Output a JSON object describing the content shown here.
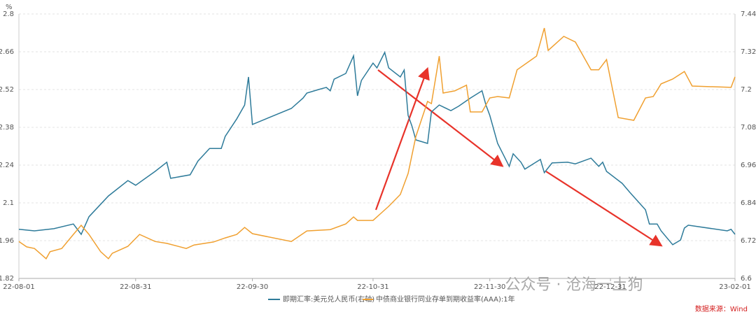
{
  "chart_data": {
    "type": "line",
    "y_unit": "%",
    "xlim": [
      "22-08-01",
      "23-02-01"
    ],
    "xticks": [
      "22-08-01",
      "22-08-31",
      "22-09-30",
      "22-10-31",
      "22-11-30",
      "22-12-31",
      "23-02-01"
    ],
    "ylim": [
      1.82,
      2.8
    ],
    "yticks": [
      1.82,
      1.96,
      2.1,
      2.24,
      2.38,
      2.52,
      2.66,
      2.8
    ],
    "y2lim": [
      6.6,
      7.44
    ],
    "y2ticks": [
      6.6,
      6.72,
      6.84,
      6.96,
      7.08,
      7.2,
      7.32,
      7.44
    ],
    "grid": true,
    "series": [
      {
        "name": "即期汇率:美元兑人民币(右轴)",
        "color": "#2e7b9a",
        "axis": "y2",
        "x": [
          "22-08-01",
          "22-08-05",
          "22-08-10",
          "22-08-15",
          "22-08-17",
          "22-08-19",
          "22-08-24",
          "22-08-29",
          "22-08-31",
          "22-09-05",
          "22-09-08",
          "22-09-09",
          "22-09-14",
          "22-09-16",
          "22-09-19",
          "22-09-22",
          "22-09-23",
          "22-09-26",
          "22-09-28",
          "22-09-29",
          "22-09-30",
          "22-10-10",
          "22-10-13",
          "22-10-14",
          "22-10-17",
          "22-10-19",
          "22-10-20",
          "22-10-21",
          "22-10-24",
          "22-10-26",
          "22-10-27",
          "22-10-28",
          "22-10-31",
          "22-11-01",
          "22-11-03",
          "22-11-04",
          "22-11-07",
          "22-11-08",
          "22-11-09",
          "22-11-10",
          "22-11-11",
          "22-11-14",
          "22-11-15",
          "22-11-17",
          "22-11-20",
          "22-11-22",
          "22-11-25",
          "22-11-28",
          "22-11-29",
          "22-11-30",
          "22-12-02",
          "22-12-05",
          "22-12-06",
          "22-12-08",
          "22-12-09",
          "22-12-13",
          "22-12-14",
          "22-12-16",
          "22-12-20",
          "22-12-22",
          "22-12-26",
          "22-12-28",
          "22-12-29",
          "22-12-30",
          "23-01-03",
          "23-01-05",
          "23-01-09",
          "23-01-10",
          "23-01-12",
          "23-01-13",
          "23-01-16",
          "23-01-18",
          "23-01-19",
          "23-01-20",
          "23-01-30",
          "23-01-31",
          "23-02-01"
        ],
        "values": [
          6.756,
          6.751,
          6.758,
          6.773,
          6.74,
          6.796,
          6.862,
          6.911,
          6.896,
          6.94,
          6.969,
          6.918,
          6.929,
          6.973,
          7.013,
          7.013,
          7.051,
          7.107,
          7.151,
          7.24,
          7.089,
          7.14,
          7.173,
          7.189,
          7.2,
          7.207,
          7.196,
          7.233,
          7.251,
          7.307,
          7.18,
          7.229,
          7.284,
          7.269,
          7.318,
          7.269,
          7.24,
          7.262,
          7.118,
          7.084,
          7.04,
          7.029,
          7.129,
          7.151,
          7.133,
          7.147,
          7.173,
          7.196,
          7.151,
          7.118,
          7.029,
          6.956,
          6.996,
          6.969,
          6.947,
          6.978,
          6.936,
          6.967,
          6.969,
          6.964,
          6.982,
          6.956,
          6.969,
          6.94,
          6.902,
          6.873,
          6.818,
          6.773,
          6.773,
          6.751,
          6.707,
          6.722,
          6.76,
          6.769,
          6.751,
          6.756,
          6.74
        ]
      },
      {
        "name": "中债商业银行同业存单到期收益率(AAA):1年",
        "color": "#f0a030",
        "axis": "y",
        "x": [
          "22-08-01",
          "22-08-03",
          "22-08-05",
          "22-08-08",
          "22-08-09",
          "22-08-12",
          "22-08-15",
          "22-08-17",
          "22-08-19",
          "22-08-22",
          "22-08-24",
          "22-08-25",
          "22-08-29",
          "22-09-01",
          "22-09-05",
          "22-09-08",
          "22-09-13",
          "22-09-15",
          "22-09-20",
          "22-09-23",
          "22-09-26",
          "22-09-28",
          "22-09-30",
          "22-10-10",
          "22-10-14",
          "22-10-20",
          "22-10-24",
          "22-10-26",
          "22-10-27",
          "22-10-31",
          "22-11-02",
          "22-11-04",
          "22-11-07",
          "22-11-09",
          "22-11-11",
          "22-11-14",
          "22-11-15",
          "22-11-17",
          "22-11-18",
          "22-11-21",
          "22-11-24",
          "22-11-25",
          "22-11-28",
          "22-11-30",
          "22-12-02",
          "22-12-05",
          "22-12-07",
          "22-12-12",
          "22-12-14",
          "22-12-15",
          "22-12-19",
          "22-12-22",
          "22-12-26",
          "22-12-28",
          "22-12-30",
          "23-01-02",
          "23-01-06",
          "23-01-09",
          "23-01-11",
          "23-01-13",
          "23-01-16",
          "23-01-19",
          "23-01-21",
          "23-01-31",
          "23-02-01"
        ],
        "values": [
          1.957,
          1.937,
          1.931,
          1.893,
          1.919,
          1.931,
          1.983,
          2.017,
          1.983,
          1.919,
          1.893,
          1.913,
          1.939,
          1.983,
          1.957,
          1.95,
          1.931,
          1.944,
          1.955,
          1.97,
          1.983,
          2.009,
          1.986,
          1.957,
          1.996,
          2.001,
          2.022,
          2.048,
          2.035,
          2.035,
          2.061,
          2.087,
          2.131,
          2.209,
          2.346,
          2.476,
          2.468,
          2.644,
          2.507,
          2.515,
          2.536,
          2.437,
          2.437,
          2.489,
          2.494,
          2.489,
          2.593,
          2.644,
          2.748,
          2.665,
          2.717,
          2.696,
          2.593,
          2.593,
          2.631,
          2.416,
          2.406,
          2.489,
          2.494,
          2.541,
          2.559,
          2.587,
          2.533,
          2.528,
          2.567
        ]
      }
    ],
    "watermark": "公众号 · 沧海一土狗",
    "source": "数据来源：Wind"
  }
}
